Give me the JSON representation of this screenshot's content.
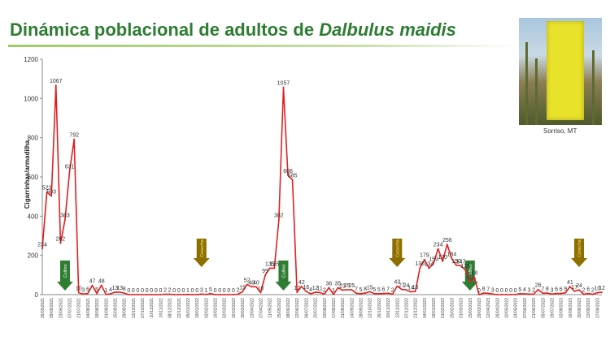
{
  "header": {
    "title_prefix": "Dinámica poblacional de adultos de ",
    "title_species": "Dalbulus maidis"
  },
  "photo": {
    "caption": "Sorriso, MT",
    "icon": "yellow-sticky-trap-photo"
  },
  "colors": {
    "line": "#e02020",
    "title": "#2e7d32",
    "cultivo": "#2e7d32",
    "cosecha": "#8d6e00"
  },
  "chart_data": {
    "type": "line",
    "title": "",
    "xlabel": "",
    "ylabel": "Cigarrinhas/armadilha",
    "ylim": [
      0,
      1200
    ],
    "yticks": [
      0,
      200,
      400,
      600,
      800,
      1000,
      1200
    ],
    "grid": false,
    "series": [
      {
        "values": [
          234,
          523,
          503,
          1067,
          262,
          383,
          631,
          792,
          10,
          3,
          6,
          47,
          5,
          48,
          1,
          4,
          13,
          13,
          8,
          0,
          0,
          0,
          0,
          0,
          0,
          0,
          0,
          2,
          2,
          0,
          0,
          0,
          1,
          0,
          0,
          3,
          1,
          5,
          0,
          0,
          0,
          0,
          0,
          2,
          15,
          52,
          40,
          40,
          10,
          99,
          135,
          135,
          382,
          1057,
          608,
          585,
          12,
          42,
          16,
          4,
          12,
          11,
          2,
          36,
          1,
          35,
          23,
          25,
          25,
          7,
          5,
          8,
          15,
          5,
          5,
          6,
          7,
          2,
          43,
          27,
          24,
          14,
          16,
          136,
          179,
          134,
          159,
          234,
          170,
          256,
          184,
          150,
          147,
          125,
          66,
          88,
          0,
          8,
          7,
          3,
          0,
          0,
          0,
          0,
          0,
          5,
          4,
          3,
          2,
          26,
          7,
          8,
          3,
          6,
          6,
          9,
          41,
          17,
          24,
          2,
          6,
          2,
          10,
          12
        ]
      }
    ],
    "x": [
      "26/05/2021",
      "02/06/2021",
      "09/06/2021",
      "16/06/2021",
      "23/06/2021",
      "30/06/2021",
      "07/07/2021",
      "14/07/2021",
      "21/07/2021",
      "28/07/2021",
      "04/08/2021",
      "11/08/2021",
      "18/08/2021",
      "25/08/2021",
      "01/09/2021",
      "08/09/2021",
      "15/09/2021",
      "22/09/2021",
      "29/09/2021",
      "06/10/2021",
      "13/10/2021",
      "20/10/2021",
      "27/10/2021",
      "03/11/2021",
      "10/11/2021",
      "17/11/2021",
      "24/11/2021",
      "01/12/2021",
      "08/12/2021",
      "15/12/2021",
      "22/12/2021",
      "29/12/2021",
      "05/01/2022",
      "12/01/2022",
      "19/01/2022",
      "26/01/2022",
      "02/02/2022",
      "09/02/2022",
      "16/02/2022",
      "23/02/2022",
      "02/03/2022",
      "09/03/2022",
      "16/03/2022",
      "23/03/2022",
      "30/03/2022",
      "06/04/2022",
      "13/04/2022",
      "20/04/2022",
      "27/04/2022",
      "04/05/2022",
      "11/05/2022",
      "18/05/2022",
      "25/05/2022",
      "01/06/2022",
      "08/06/2022",
      "15/06/2022",
      "22/06/2022",
      "29/06/2022",
      "06/07/2022",
      "13/07/2022",
      "20/07/2022",
      "27/07/2022",
      "03/08/2022",
      "10/08/2022",
      "17/08/2022",
      "24/08/2022",
      "31/08/2022",
      "07/09/2022",
      "14/09/2022",
      "21/09/2022",
      "28/09/2022",
      "05/10/2022",
      "12/10/2022",
      "19/10/2022",
      "26/10/2022",
      "02/11/2022",
      "09/11/2022",
      "16/11/2022",
      "23/11/2022",
      "30/11/2022",
      "07/12/2022",
      "14/12/2022",
      "21/12/2022",
      "28/12/2022",
      "04/01/2023",
      "11/01/2023",
      "18/01/2023",
      "25/01/2023",
      "01/02/2023",
      "08/02/2023",
      "15/02/2023",
      "22/02/2023",
      "01/03/2023",
      "08/03/2023",
      "15/03/2023",
      "22/03/2023",
      "29/03/2023",
      "05/04/2023",
      "12/04/2023",
      "19/04/2023",
      "26/04/2023",
      "03/05/2023",
      "10/05/2023",
      "17/05/2023",
      "24/05/2023",
      "31/05/2023",
      "07/06/2023",
      "14/06/2023",
      "21/06/2023",
      "28/06/2023",
      "05/07/2023",
      "12/07/2023",
      "19/07/2023",
      "26/07/2023",
      "02/08/2023",
      "09/08/2023",
      "16/08/2023",
      "23/08/2023",
      "30/08/2023",
      "06/09/2023",
      "13/09/2023",
      "20/09/2023",
      "27/09/2023",
      "04/10/2023"
    ],
    "data_labels": [
      "234",
      "523",
      "503",
      "1067",
      "262",
      "383",
      "631",
      "792",
      "10",
      "3",
      "6",
      "47",
      "5",
      "48",
      "1",
      "4",
      "13",
      "13",
      "8",
      "0",
      "0",
      "0",
      "0",
      "0",
      "0",
      "0",
      "0",
      "2",
      "2",
      "0",
      "0",
      "0",
      "1",
      "0",
      "0",
      "3",
      "1",
      "5",
      "0",
      "0",
      "0",
      "0",
      "0",
      "2",
      "15",
      "52",
      "40",
      "40",
      "10",
      "99",
      "135",
      "135",
      "382",
      "1057",
      "608",
      "585",
      "12",
      "42",
      "16",
      "4",
      "12",
      "11",
      "2",
      "36",
      "1",
      "35",
      "23",
      "25",
      "25",
      "7",
      "5",
      "8",
      "15",
      "5",
      "5",
      "6",
      "7",
      "2",
      "43",
      "27",
      "24",
      "14",
      "16",
      "136",
      "179",
      "134",
      "159",
      "234",
      "170",
      "256",
      "184",
      "150",
      "147",
      "125",
      "66",
      "88",
      "0",
      "8",
      "7",
      "3",
      "0",
      "0",
      "0",
      "0",
      "0",
      "5",
      "4",
      "3",
      "2",
      "26",
      "7",
      "8",
      "3",
      "6",
      "6",
      "9",
      "41",
      "17",
      "24",
      "2",
      "6",
      "2",
      "10",
      "12"
    ],
    "annotations": [
      {
        "label": "Cultivo",
        "type": "cultivo",
        "x_index": 5
      },
      {
        "label": "Cosecha",
        "type": "cosecha",
        "x_index": 35
      },
      {
        "label": "Cultivo",
        "type": "cultivo",
        "x_index": 53
      },
      {
        "label": "Cosecha",
        "type": "cosecha",
        "x_index": 78
      },
      {
        "label": "Cultivo",
        "type": "cultivo",
        "x_index": 94
      },
      {
        "label": "Cosecha",
        "type": "cosecha",
        "x_index": 118
      }
    ]
  }
}
